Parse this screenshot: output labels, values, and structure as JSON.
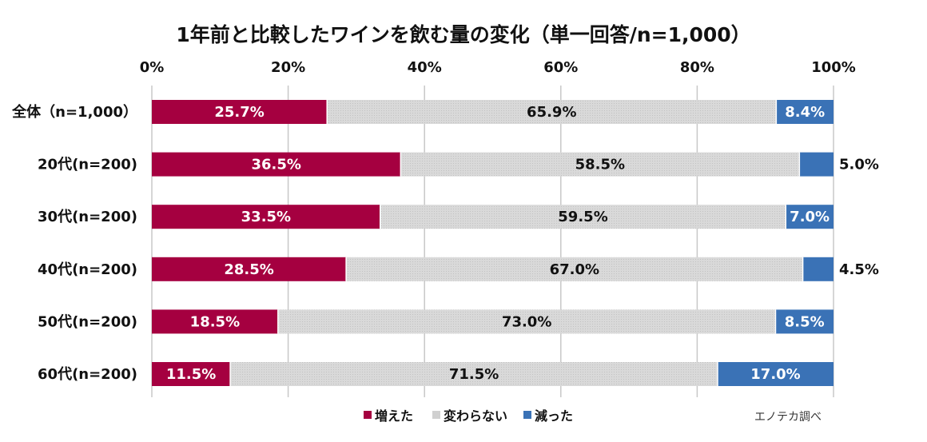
{
  "chart_data": {
    "type": "bar",
    "orientation": "horizontal",
    "stacked": true,
    "title": "1年前と比較したワインを飲む量の変化（単一回答/n=1,000）",
    "x_ticks": [
      "0%",
      "20%",
      "40%",
      "60%",
      "80%",
      "100%"
    ],
    "xlim": [
      0,
      100
    ],
    "grid": true,
    "categories": [
      "全体（n=1,000）",
      "20代(n=200)",
      "30代(n=200)",
      "40代(n=200)",
      "50代(n=200)",
      "60代(n=200)"
    ],
    "series": [
      {
        "name": "増えた",
        "color": "#a50040",
        "values": [
          25.7,
          36.5,
          33.5,
          28.5,
          18.5,
          11.5
        ],
        "labels": [
          "25.7%",
          "36.5%",
          "33.5%",
          "28.5%",
          "18.5%",
          "11.5%"
        ]
      },
      {
        "name": "変わらない",
        "color": "#d6d6d6",
        "values": [
          65.9,
          58.5,
          59.5,
          67.0,
          73.0,
          71.5
        ],
        "labels": [
          "65.9%",
          "58.5%",
          "59.5%",
          "67.0%",
          "73.0%",
          "71.5%"
        ]
      },
      {
        "name": "減った",
        "color": "#3a72b6",
        "values": [
          8.4,
          5.0,
          7.0,
          4.5,
          8.5,
          17.0
        ],
        "labels": [
          "8.4%",
          "5.0%",
          "7.0%",
          "4.5%",
          "8.5%",
          "17.0%"
        ]
      }
    ],
    "legend_position": "bottom",
    "source_note": "エノテカ調べ"
  }
}
